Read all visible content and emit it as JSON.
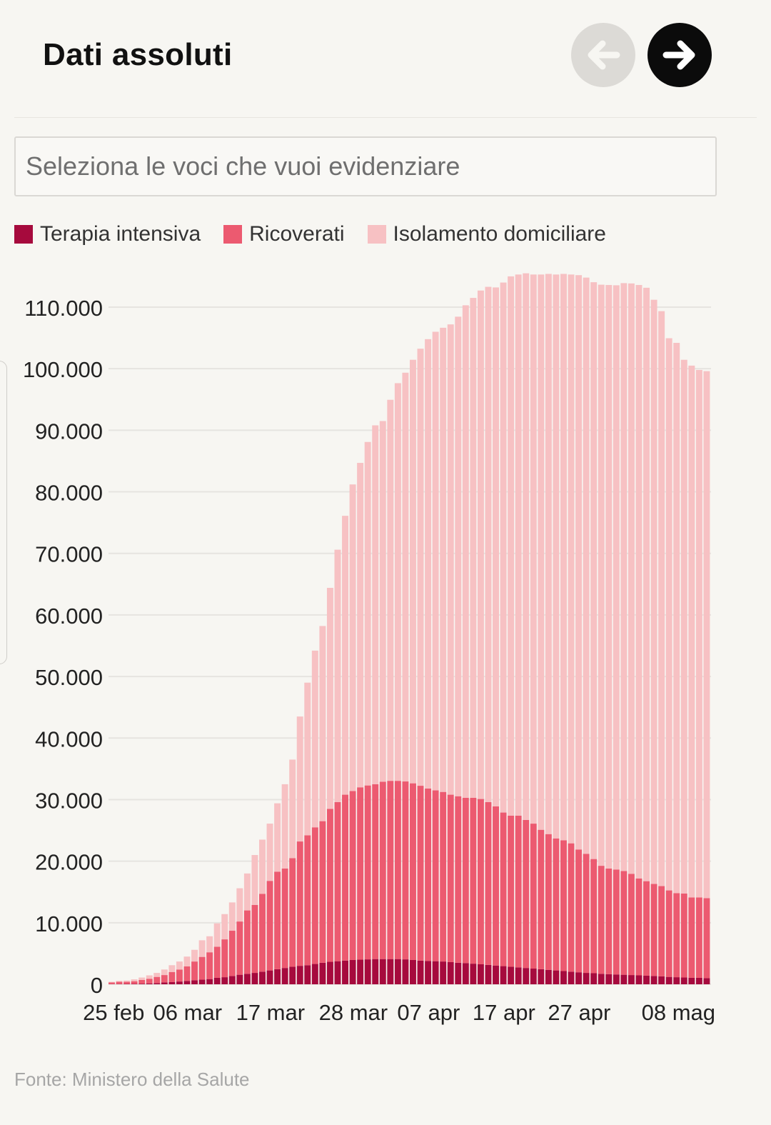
{
  "header": {
    "title": "Dati assoluti"
  },
  "nav": {
    "prev_icon": "arrow-left-icon",
    "next_icon": "arrow-right-icon"
  },
  "search": {
    "placeholder": "Seleziona le voci che vuoi evidenziare"
  },
  "legend": [
    {
      "label": "Terapia intensiva",
      "color": "#a60a3d"
    },
    {
      "label": "Ricoverati",
      "color": "#ec5a70"
    },
    {
      "label": "Isolamento domiciliare",
      "color": "#f7c1c3"
    }
  ],
  "source": "Fonte: Ministero della Salute",
  "chart_data": {
    "type": "bar",
    "stacked": true,
    "ylim": [
      0,
      110000
    ],
    "y_ticks": [
      {
        "value": 0,
        "label": "0"
      },
      {
        "value": 10000,
        "label": "10.000"
      },
      {
        "value": 20000,
        "label": "20.000"
      },
      {
        "value": 30000,
        "label": "30.000"
      },
      {
        "value": 40000,
        "label": "40.000"
      },
      {
        "value": 50000,
        "label": "50.000"
      },
      {
        "value": 60000,
        "label": "60.000"
      },
      {
        "value": 70000,
        "label": "70.000"
      },
      {
        "value": 80000,
        "label": "80.000"
      },
      {
        "value": 90000,
        "label": "90.000"
      },
      {
        "value": 100000,
        "label": "100.000"
      },
      {
        "value": 110000,
        "label": "110.000"
      }
    ],
    "x_ticks": [
      {
        "label": "25 feb",
        "index": 0
      },
      {
        "label": "06 mar",
        "index": 10
      },
      {
        "label": "17 mar",
        "index": 21
      },
      {
        "label": "28 mar",
        "index": 32
      },
      {
        "label": "07 apr",
        "index": 42
      },
      {
        "label": "17 apr",
        "index": 52
      },
      {
        "label": "27 apr",
        "index": 62
      },
      {
        "label": "08 mag",
        "index": 73
      }
    ],
    "grid": true,
    "series": [
      {
        "name": "Terapia intensiva",
        "values": [
          30,
          40,
          55,
          65,
          100,
          150,
          200,
          300,
          350,
          450,
          550,
          650,
          750,
          850,
          1050,
          1150,
          1350,
          1550,
          1700,
          1850,
          2050,
          2250,
          2450,
          2650,
          2850,
          3000,
          3100,
          3300,
          3500,
          3650,
          3750,
          3850,
          3950,
          4000,
          4050,
          4100,
          4100,
          4100,
          4100,
          4050,
          3950,
          3850,
          3800,
          3750,
          3700,
          3600,
          3500,
          3450,
          3350,
          3250,
          3150,
          3050,
          2950,
          2850,
          2750,
          2650,
          2550,
          2450,
          2350,
          2250,
          2150,
          2050,
          1950,
          1850,
          1800,
          1700,
          1650,
          1600,
          1550,
          1500,
          1450,
          1400,
          1350,
          1300,
          1200,
          1150,
          1100,
          1050,
          1050,
          1000
        ]
      },
      {
        "name": "Ricoverati",
        "values": [
          270,
          360,
          345,
          435,
          600,
          750,
          1000,
          1200,
          1650,
          1950,
          2350,
          3050,
          3700,
          4350,
          5050,
          6150,
          7350,
          8650,
          10300,
          11050,
          12650,
          14550,
          15850,
          16150,
          17650,
          20200,
          21100,
          22200,
          23000,
          24850,
          25850,
          26950,
          27450,
          28000,
          28250,
          28400,
          28800,
          28950,
          28950,
          28900,
          28700,
          28400,
          28000,
          27750,
          27550,
          27200,
          27050,
          26850,
          26950,
          26850,
          26450,
          25850,
          24950,
          24550,
          24650,
          24050,
          23550,
          22650,
          22050,
          21450,
          21250,
          20850,
          19950,
          19350,
          18550,
          17550,
          17150,
          17050,
          16850,
          16450,
          15750,
          15350,
          14950,
          14650,
          14050,
          13650,
          13650,
          13050,
          13050,
          13000
        ]
      },
      {
        "name": "Isolamento domiciliare",
        "values": [
          100,
          150,
          200,
          300,
          400,
          550,
          650,
          900,
          1100,
          1300,
          1600,
          1900,
          2700,
          2600,
          3800,
          4100,
          4600,
          5400,
          6000,
          8100,
          8800,
          9300,
          11100,
          13700,
          16000,
          20300,
          24800,
          28700,
          31700,
          35900,
          41000,
          45300,
          49800,
          52700,
          55800,
          58300,
          58600,
          61900,
          64600,
          66400,
          68800,
          71000,
          73000,
          74500,
          75400,
          76400,
          77900,
          80000,
          81200,
          82600,
          83700,
          84300,
          86100,
          87600,
          87900,
          88800,
          89200,
          90200,
          91000,
          91600,
          92000,
          92400,
          93300,
          93600,
          93700,
          94400,
          94800,
          94900,
          95500,
          95900,
          96400,
          96400,
          94900,
          93400,
          89700,
          89400,
          86700,
          86400,
          85700,
          85600
        ]
      }
    ]
  }
}
